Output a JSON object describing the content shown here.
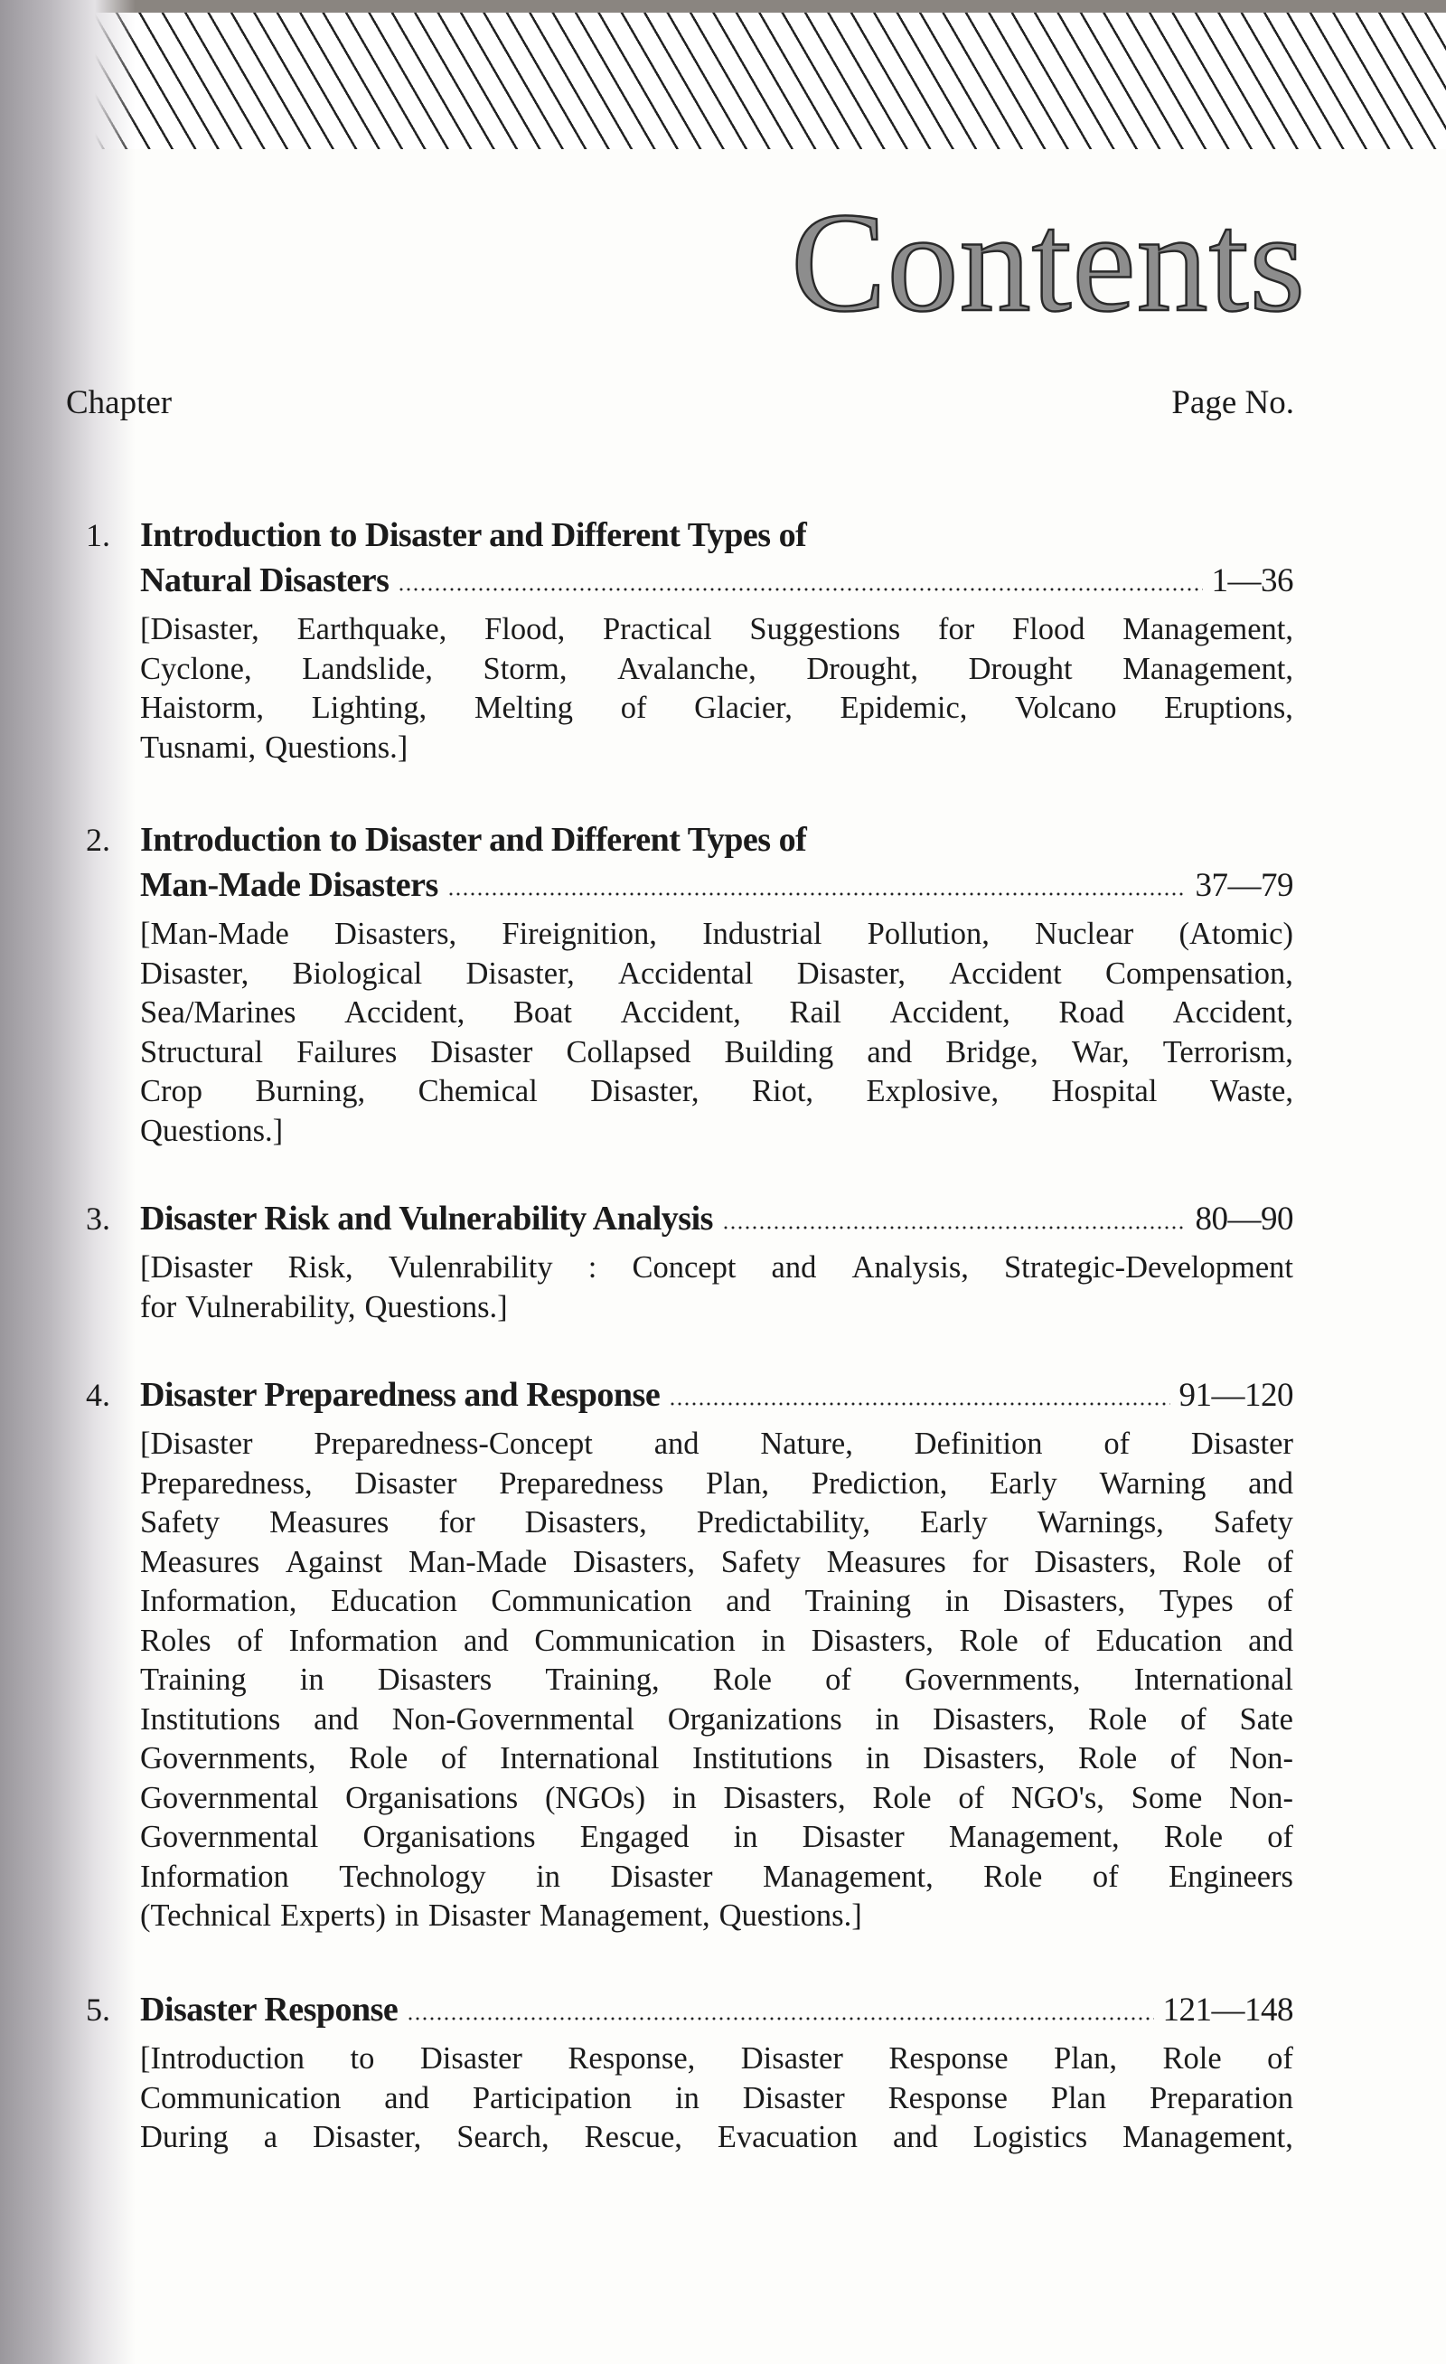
{
  "page": {
    "title": "Contents",
    "column_left": "Chapter",
    "column_right": "Page No."
  },
  "chapters": [
    {
      "number": "1.",
      "title_lines": [
        "Introduction to Disaster and Different Types of",
        "Natural Disasters"
      ],
      "pages": "1—36",
      "description_lines": [
        "[Disaster, Earthquake, Flood, Practical Suggestions for Flood Management,",
        "Cyclone, Landslide, Storm, Avalanche, Drought, Drought Management,",
        "Haistorm, Lighting, Melting of Glacier, Epidemic, Volcano Eruptions,",
        "Tusnami, Questions.]"
      ]
    },
    {
      "number": "2.",
      "title_lines": [
        "Introduction to Disaster and Different Types of",
        "Man-Made Disasters"
      ],
      "pages": "37—79",
      "description_lines": [
        "[Man-Made Disasters, Fireignition, Industrial Pollution, Nuclear (Atomic)",
        "Disaster, Biological Disaster, Accidental Disaster, Accident Compensation,",
        "Sea/Marines Accident, Boat Accident, Rail Accident, Road Accident,",
        "Structural Failures Disaster Collapsed Building and Bridge, War, Terrorism,",
        "Crop Burning, Chemical Disaster, Riot, Explosive, Hospital Waste,",
        "Questions.]"
      ]
    },
    {
      "number": "3.",
      "title_lines": [
        "Disaster Risk and Vulnerability Analysis"
      ],
      "pages": "80—90",
      "description_lines": [
        "[Disaster Risk, Vulenrability : Concept and Analysis, Strategic-Development",
        "for Vulnerability, Questions.]"
      ]
    },
    {
      "number": "4.",
      "title_lines": [
        "Disaster Preparedness and Response"
      ],
      "pages": "91—120",
      "description_lines": [
        "[Disaster Preparedness-Concept and Nature, Definition of Disaster",
        "Preparedness, Disaster Preparedness Plan, Prediction, Early Warning and",
        "Safety Measures for Disasters, Predictability, Early Warnings, Safety",
        "Measures Against Man-Made Disasters, Safety Measures for Disasters, Role of",
        "Information, Education Communication and Training in Disasters, Types of",
        "Roles of Information and Communication in Disasters, Role of Education and",
        "Training in Disasters Training, Role of Governments, International",
        "Institutions and Non-Governmental Organizations in Disasters, Role of Sate",
        "Governments, Role of International Institutions in Disasters, Role of Non-",
        "Governmental Organisations (NGOs) in Disasters, Role of NGO's, Some Non-",
        "Governmental Organisations Engaged in Disaster Management, Role of",
        "Information Technology in Disaster Management, Role of Engineers",
        "(Technical Experts) in Disaster Management, Questions.]"
      ]
    },
    {
      "number": "5.",
      "title_lines": [
        "Disaster Response"
      ],
      "pages": "121—148",
      "description_lines": [
        "[Introduction to Disaster Response, Disaster Response Plan, Role of",
        "Communication and Participation in Disaster Response Plan Preparation",
        "During a Disaster, Search, Rescue, Evacuation and Logistics Management,"
      ],
      "description_continues": true
    }
  ]
}
